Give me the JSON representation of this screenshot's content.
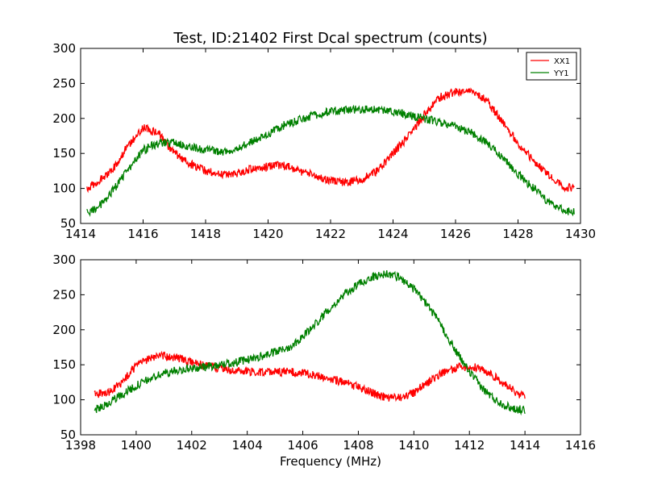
{
  "figure_title": "Test, ID:21402 First Dcal spectrum (counts)",
  "colors": {
    "xx1": "#ff0000",
    "yy1": "#008000",
    "axes": "#000000"
  },
  "chart_data": [
    {
      "type": "line",
      "title": "Test, ID:21402 First Dcal spectrum (counts)",
      "xlabel": "",
      "ylabel": "",
      "xlim": [
        1414,
        1430
      ],
      "ylim": [
        50,
        300
      ],
      "xticks": [
        "1414",
        "1416",
        "1418",
        "1420",
        "1422",
        "1424",
        "1426",
        "1428",
        "1430"
      ],
      "yticks": [
        "50",
        "100",
        "150",
        "200",
        "250",
        "300"
      ],
      "legend": {
        "position": "top-right",
        "entries": [
          "XX1",
          "YY1"
        ]
      },
      "grid": false,
      "series": [
        {
          "name": "XX1",
          "color": "#ff0000",
          "x": [
            1414.2,
            1414.5,
            1415.0,
            1415.5,
            1416.0,
            1416.5,
            1417.0,
            1417.5,
            1418.0,
            1418.5,
            1419.0,
            1419.5,
            1420.0,
            1420.5,
            1421.0,
            1421.5,
            1422.0,
            1422.5,
            1423.0,
            1423.5,
            1424.0,
            1424.5,
            1425.0,
            1425.5,
            1426.0,
            1426.5,
            1427.0,
            1427.5,
            1428.0,
            1428.5,
            1429.0,
            1429.5,
            1429.8
          ],
          "y": [
            100,
            108,
            125,
            160,
            187,
            178,
            150,
            135,
            125,
            120,
            122,
            128,
            132,
            133,
            125,
            118,
            112,
            108,
            113,
            125,
            150,
            175,
            205,
            230,
            238,
            240,
            225,
            195,
            165,
            140,
            118,
            102,
            100
          ]
        },
        {
          "name": "YY1",
          "color": "#008000",
          "x": [
            1414.2,
            1414.5,
            1415.0,
            1415.5,
            1416.0,
            1416.5,
            1417.0,
            1417.5,
            1418.0,
            1418.5,
            1419.0,
            1419.5,
            1420.0,
            1420.5,
            1421.0,
            1421.5,
            1422.0,
            1422.5,
            1423.0,
            1423.5,
            1424.0,
            1424.5,
            1425.0,
            1425.5,
            1426.0,
            1426.5,
            1427.0,
            1427.5,
            1428.0,
            1428.5,
            1429.0,
            1429.5,
            1429.8
          ],
          "y": [
            66,
            70,
            95,
            125,
            155,
            165,
            165,
            160,
            155,
            152,
            158,
            167,
            178,
            190,
            198,
            205,
            210,
            212,
            213,
            212,
            210,
            205,
            200,
            195,
            188,
            180,
            165,
            145,
            120,
            100,
            80,
            68,
            66
          ]
        }
      ]
    },
    {
      "type": "line",
      "title": "",
      "xlabel": "Frequency (MHz)",
      "ylabel": "",
      "xlim": [
        1398,
        1416
      ],
      "ylim": [
        50,
        300
      ],
      "xticks": [
        "1398",
        "1400",
        "1402",
        "1404",
        "1406",
        "1408",
        "1410",
        "1412",
        "1414",
        "1416"
      ],
      "yticks": [
        "50",
        "100",
        "150",
        "200",
        "250",
        "300"
      ],
      "legend": null,
      "grid": false,
      "series": [
        {
          "name": "",
          "color": "#ff0000",
          "x": [
            1398.5,
            1399.0,
            1399.5,
            1400.0,
            1400.5,
            1401.0,
            1401.5,
            1402.0,
            1402.5,
            1403.0,
            1403.5,
            1404.0,
            1404.5,
            1405.0,
            1405.5,
            1406.0,
            1406.5,
            1407.0,
            1407.5,
            1408.0,
            1408.5,
            1409.0,
            1409.5,
            1410.0,
            1410.5,
            1411.0,
            1411.5,
            1412.0,
            1412.5,
            1413.0,
            1413.5,
            1414.0
          ],
          "y": [
            108,
            110,
            125,
            148,
            160,
            163,
            160,
            153,
            148,
            145,
            142,
            140,
            140,
            140,
            140,
            138,
            135,
            130,
            125,
            118,
            110,
            103,
            103,
            110,
            125,
            138,
            145,
            148,
            143,
            130,
            115,
            103
          ]
        },
        {
          "name": "",
          "color": "#008000",
          "x": [
            1398.5,
            1399.0,
            1399.5,
            1400.0,
            1400.5,
            1401.0,
            1401.5,
            1402.0,
            1402.5,
            1403.0,
            1403.5,
            1404.0,
            1404.5,
            1405.0,
            1405.5,
            1406.0,
            1406.5,
            1407.0,
            1407.5,
            1408.0,
            1408.5,
            1409.0,
            1409.5,
            1410.0,
            1410.5,
            1411.0,
            1411.5,
            1412.0,
            1412.5,
            1413.0,
            1413.5,
            1414.0
          ],
          "y": [
            85,
            95,
            108,
            120,
            130,
            138,
            142,
            145,
            147,
            150,
            153,
            157,
            162,
            168,
            175,
            190,
            210,
            232,
            250,
            265,
            275,
            280,
            275,
            258,
            235,
            205,
            170,
            140,
            115,
            98,
            88,
            85
          ]
        }
      ]
    }
  ]
}
